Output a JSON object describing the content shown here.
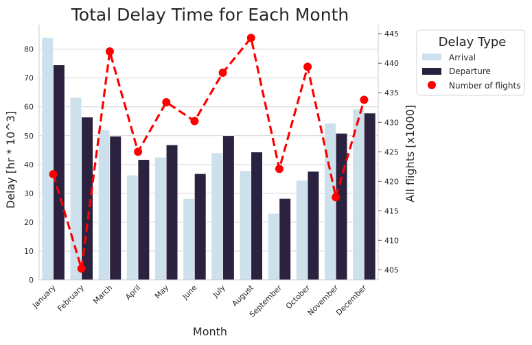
{
  "chart_data": {
    "type": "bar",
    "title": "Total Delay Time for Each Month",
    "xlabel": "Month",
    "ylabel": "Delay [hr * 10^3]",
    "ylabel_right": "All flights [x1000]",
    "categories": [
      "January",
      "February",
      "March",
      "April",
      "May",
      "June",
      "July",
      "August",
      "September",
      "October",
      "November",
      "December"
    ],
    "series": [
      {
        "name": "Arrival",
        "type": "bar",
        "axis": "left",
        "color": "#cde1ec",
        "values": [
          84.0,
          63.2,
          52.0,
          36.3,
          42.5,
          28.2,
          44.0,
          37.8,
          23.0,
          34.5,
          54.3,
          59.2
        ]
      },
      {
        "name": "Departure",
        "type": "bar",
        "axis": "left",
        "color": "#2b2240",
        "values": [
          74.5,
          56.4,
          49.8,
          41.7,
          46.8,
          36.8,
          50.0,
          44.3,
          28.2,
          37.6,
          50.8,
          57.8
        ]
      },
      {
        "name": "Number of flights",
        "type": "line",
        "axis": "right",
        "color": "#ff0000",
        "values": [
          421.2,
          405.2,
          442.0,
          425.0,
          433.4,
          430.2,
          438.4,
          444.3,
          422.1,
          439.4,
          417.3,
          433.8
        ]
      }
    ],
    "ylim": [
      0,
      88
    ],
    "yticks": [
      0,
      10,
      20,
      30,
      40,
      50,
      60,
      70,
      80
    ],
    "ylim_right": [
      403.3,
      446.3
    ],
    "yticks_right": [
      405,
      410,
      415,
      420,
      425,
      430,
      435,
      440,
      445
    ],
    "grid": "horizontal",
    "legend": {
      "title": "Delay Type",
      "placement": "outside-top-right"
    }
  }
}
